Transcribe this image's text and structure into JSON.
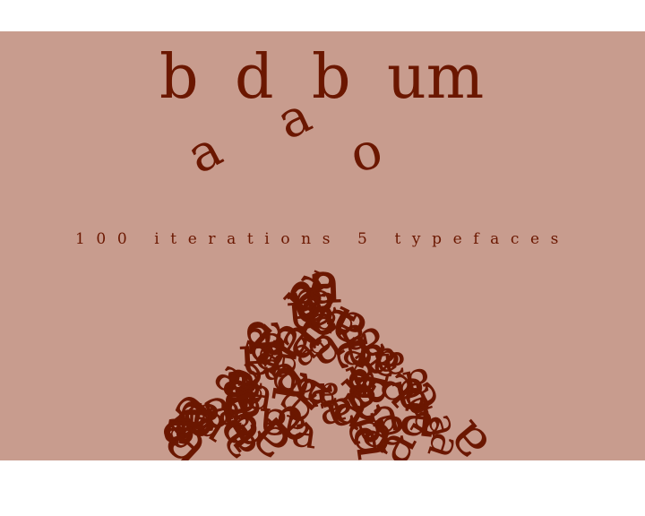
{
  "title_word": [
    "b",
    "a",
    "d",
    "a",
    "b",
    "o",
    "um"
  ],
  "subtitle": "100 iterations 5 typefaces",
  "pile_glyph": "a",
  "colors": {
    "background": "#c89c8e",
    "ink": "#6b1700"
  }
}
